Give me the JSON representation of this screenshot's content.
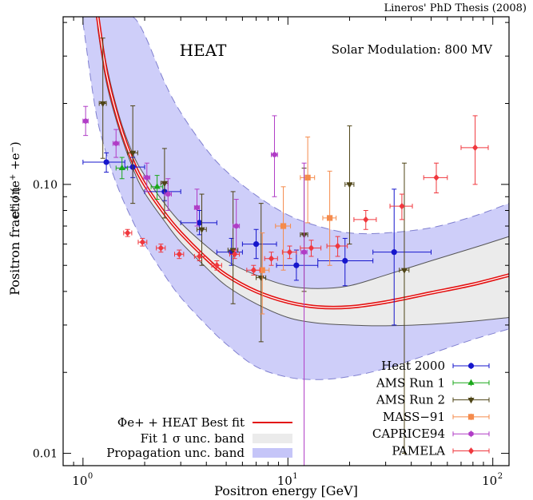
{
  "header": {
    "credit": "Lineros' PhD Thesis (2008)"
  },
  "chart_data": {
    "type": "scatter",
    "panel_title": "HEAT",
    "annotation": "Solar Modulation: 800 MV",
    "xlabel": "Positron energy [GeV]",
    "ylabel": "Positron fraction",
    "ylabel_formula": "e+ / (e+ + e−)",
    "xscale": "log",
    "yscale": "log",
    "xlim": [
      0.8,
      120
    ],
    "ylim": [
      0.009,
      0.42
    ],
    "x_ticks": [
      {
        "value": 1,
        "label": "10",
        "exp": "0"
      },
      {
        "value": 10,
        "label": "10",
        "exp": "1"
      },
      {
        "value": 100,
        "label": "10",
        "exp": "2"
      }
    ],
    "y_ticks": [
      {
        "value": 0.01,
        "label": "0.01"
      },
      {
        "value": 0.1,
        "label": "0.10"
      }
    ],
    "legend_position": "bottom-right",
    "model_legend_position": "bottom-center",
    "series": [
      {
        "name": "Heat 2000",
        "color": "#1616cc",
        "marker": "circle",
        "points": [
          {
            "x": 1.3,
            "y": 0.121,
            "xlo": 1.0,
            "xhi": 1.6,
            "ylo": 0.111,
            "yhi": 0.131
          },
          {
            "x": 1.75,
            "y": 0.116,
            "xlo": 1.6,
            "xhi": 2.0,
            "ylo": 0.106,
            "yhi": 0.126
          },
          {
            "x": 2.5,
            "y": 0.094,
            "xlo": 2.0,
            "xhi": 3.0,
            "ylo": 0.087,
            "yhi": 0.102
          },
          {
            "x": 3.7,
            "y": 0.072,
            "xlo": 3.0,
            "xhi": 4.5,
            "ylo": 0.065,
            "yhi": 0.08
          },
          {
            "x": 5.3,
            "y": 0.056,
            "xlo": 4.5,
            "xhi": 6.0,
            "ylo": 0.05,
            "yhi": 0.063
          },
          {
            "x": 7.0,
            "y": 0.06,
            "xlo": 6.0,
            "xhi": 8.8,
            "ylo": 0.053,
            "yhi": 0.068
          },
          {
            "x": 11.0,
            "y": 0.05,
            "xlo": 8.8,
            "xhi": 14.0,
            "ylo": 0.044,
            "yhi": 0.057
          },
          {
            "x": 19.0,
            "y": 0.052,
            "xlo": 14.0,
            "xhi": 26.0,
            "ylo": 0.042,
            "yhi": 0.063
          },
          {
            "x": 33.0,
            "y": 0.056,
            "xlo": 26.0,
            "xhi": 50.0,
            "ylo": 0.03,
            "yhi": 0.096
          }
        ]
      },
      {
        "name": "AMS Run 1",
        "color": "#1aa81a",
        "marker": "triangle-up",
        "points": [
          {
            "x": 1.55,
            "y": 0.115,
            "xlo": 1.45,
            "xhi": 1.65,
            "ylo": 0.105,
            "yhi": 0.126
          },
          {
            "x": 2.3,
            "y": 0.098,
            "xlo": 2.15,
            "xhi": 2.45,
            "ylo": 0.088,
            "yhi": 0.108
          }
        ]
      },
      {
        "name": "AMS Run 2",
        "color": "#4e4416",
        "marker": "triangle-down",
        "points": [
          {
            "x": 1.25,
            "y": 0.2,
            "xlo": 1.2,
            "xhi": 1.3,
            "ylo": 0.125,
            "yhi": 0.35
          },
          {
            "x": 1.75,
            "y": 0.131,
            "xlo": 1.65,
            "xhi": 1.85,
            "ylo": 0.085,
            "yhi": 0.196
          },
          {
            "x": 2.5,
            "y": 0.101,
            "xlo": 2.4,
            "xhi": 2.6,
            "ylo": 0.075,
            "yhi": 0.136
          },
          {
            "x": 3.8,
            "y": 0.068,
            "xlo": 3.6,
            "xhi": 4.0,
            "ylo": 0.05,
            "yhi": 0.092
          },
          {
            "x": 5.4,
            "y": 0.057,
            "xlo": 5.1,
            "xhi": 5.7,
            "ylo": 0.036,
            "yhi": 0.094
          },
          {
            "x": 7.4,
            "y": 0.045,
            "xlo": 7.0,
            "xhi": 7.8,
            "ylo": 0.026,
            "yhi": 0.085
          },
          {
            "x": 12.0,
            "y": 0.065,
            "xlo": 11.5,
            "xhi": 12.5,
            "ylo": 0.04,
            "yhi": 0.115
          },
          {
            "x": 20.0,
            "y": 0.1,
            "xlo": 19.0,
            "xhi": 21.0,
            "ylo": 0.06,
            "yhi": 0.165
          },
          {
            "x": 37.0,
            "y": 0.048,
            "xlo": 35.0,
            "xhi": 39.0,
            "ylo": 0.01,
            "yhi": 0.12
          }
        ]
      },
      {
        "name": "MASS−91",
        "color": "#f58b4c",
        "marker": "square",
        "points": [
          {
            "x": 7.5,
            "y": 0.048,
            "xlo": 6.9,
            "xhi": 8.1,
            "ylo": 0.033,
            "yhi": 0.066
          },
          {
            "x": 9.5,
            "y": 0.07,
            "xlo": 8.7,
            "xhi": 10.3,
            "ylo": 0.048,
            "yhi": 0.098
          },
          {
            "x": 12.5,
            "y": 0.106,
            "xlo": 11.5,
            "xhi": 13.5,
            "ylo": 0.072,
            "yhi": 0.15
          },
          {
            "x": 16.0,
            "y": 0.075,
            "xlo": 14.8,
            "xhi": 17.2,
            "ylo": 0.05,
            "yhi": 0.112
          }
        ]
      },
      {
        "name": "CAPRICE94",
        "color": "#b03cc6",
        "marker": "hexagon",
        "points": [
          {
            "x": 1.03,
            "y": 0.172,
            "xlo": 1.0,
            "xhi": 1.06,
            "ylo": 0.152,
            "yhi": 0.195
          },
          {
            "x": 1.45,
            "y": 0.142,
            "xlo": 1.4,
            "xhi": 1.5,
            "ylo": 0.126,
            "yhi": 0.16
          },
          {
            "x": 2.05,
            "y": 0.106,
            "xlo": 1.98,
            "xhi": 2.12,
            "ylo": 0.094,
            "yhi": 0.12
          },
          {
            "x": 2.6,
            "y": 0.092,
            "xlo": 2.5,
            "xhi": 2.7,
            "ylo": 0.08,
            "yhi": 0.105
          },
          {
            "x": 3.6,
            "y": 0.082,
            "xlo": 3.5,
            "xhi": 3.7,
            "ylo": 0.07,
            "yhi": 0.096
          },
          {
            "x": 5.6,
            "y": 0.07,
            "xlo": 5.4,
            "xhi": 5.8,
            "ylo": 0.055,
            "yhi": 0.088
          },
          {
            "x": 8.6,
            "y": 0.129,
            "xlo": 8.3,
            "xhi": 8.9,
            "ylo": 0.09,
            "yhi": 0.18
          },
          {
            "x": 12.0,
            "y": 0.056,
            "xlo": 11.6,
            "xhi": 12.4,
            "ylo": 0.009,
            "yhi": 0.12
          }
        ]
      },
      {
        "name": "PAMELA",
        "color": "#f0383e",
        "marker": "diamond",
        "points": [
          {
            "x": 1.65,
            "y": 0.066,
            "xlo": 1.58,
            "xhi": 1.73,
            "ylo": 0.064,
            "yhi": 0.068
          },
          {
            "x": 1.95,
            "y": 0.061,
            "xlo": 1.86,
            "xhi": 2.05,
            "ylo": 0.059,
            "yhi": 0.063
          },
          {
            "x": 2.4,
            "y": 0.058,
            "xlo": 2.28,
            "xhi": 2.52,
            "ylo": 0.056,
            "yhi": 0.06
          },
          {
            "x": 2.95,
            "y": 0.055,
            "xlo": 2.8,
            "xhi": 3.1,
            "ylo": 0.053,
            "yhi": 0.057
          },
          {
            "x": 3.7,
            "y": 0.054,
            "xlo": 3.5,
            "xhi": 3.9,
            "ylo": 0.052,
            "yhi": 0.056
          },
          {
            "x": 4.5,
            "y": 0.05,
            "xlo": 4.25,
            "xhi": 4.75,
            "ylo": 0.048,
            "yhi": 0.052
          },
          {
            "x": 5.5,
            "y": 0.055,
            "xlo": 5.2,
            "xhi": 5.8,
            "ylo": 0.053,
            "yhi": 0.057
          },
          {
            "x": 6.8,
            "y": 0.048,
            "xlo": 6.3,
            "xhi": 7.3,
            "ylo": 0.046,
            "yhi": 0.05
          },
          {
            "x": 8.3,
            "y": 0.053,
            "xlo": 7.7,
            "xhi": 8.9,
            "ylo": 0.05,
            "yhi": 0.056
          },
          {
            "x": 10.2,
            "y": 0.056,
            "xlo": 9.4,
            "xhi": 11.0,
            "ylo": 0.053,
            "yhi": 0.059
          },
          {
            "x": 13.0,
            "y": 0.058,
            "xlo": 11.5,
            "xhi": 14.5,
            "ylo": 0.054,
            "yhi": 0.062
          },
          {
            "x": 17.5,
            "y": 0.059,
            "xlo": 15.5,
            "xhi": 19.5,
            "ylo": 0.054,
            "yhi": 0.064
          },
          {
            "x": 24.0,
            "y": 0.074,
            "xlo": 21.0,
            "xhi": 27.0,
            "ylo": 0.068,
            "yhi": 0.08
          },
          {
            "x": 36.0,
            "y": 0.083,
            "xlo": 31.5,
            "xhi": 40.5,
            "ylo": 0.074,
            "yhi": 0.092
          },
          {
            "x": 53.0,
            "y": 0.106,
            "xlo": 46.0,
            "xhi": 60.0,
            "ylo": 0.093,
            "yhi": 0.12
          },
          {
            "x": 82.0,
            "y": 0.137,
            "xlo": 70.0,
            "xhi": 95.0,
            "ylo": 0.1,
            "yhi": 0.18
          }
        ]
      }
    ],
    "model": {
      "best_fit": {
        "name": "Φe+ + HEAT Best fit",
        "color": "#e31212",
        "x": [
          1.18,
          1.3,
          1.5,
          1.75,
          2.0,
          2.5,
          3.0,
          4.0,
          5.0,
          7.0,
          10.0,
          14.0,
          20.0,
          30.0,
          50.0,
          80.0,
          120.0
        ],
        "y": [
          0.42,
          0.26,
          0.17,
          0.122,
          0.1,
          0.078,
          0.066,
          0.053,
          0.046,
          0.04,
          0.0365,
          0.035,
          0.035,
          0.0365,
          0.0395,
          0.0425,
          0.046
        ]
      },
      "fit_band": {
        "name": "Fit 1 σ unc. band",
        "color": "#ebebeb",
        "x": [
          1.18,
          1.3,
          1.5,
          1.75,
          2.0,
          2.5,
          3.0,
          4.0,
          5.0,
          7.0,
          10.0,
          14.0,
          20.0,
          30.0,
          50.0,
          80.0,
          120.0
        ],
        "lower": [
          0.38,
          0.24,
          0.16,
          0.115,
          0.093,
          0.073,
          0.061,
          0.049,
          0.042,
          0.036,
          0.032,
          0.0305,
          0.03,
          0.0298,
          0.0302,
          0.031,
          0.032
        ],
        "upper": [
          0.44,
          0.28,
          0.18,
          0.13,
          0.108,
          0.085,
          0.072,
          0.059,
          0.052,
          0.046,
          0.042,
          0.041,
          0.042,
          0.046,
          0.052,
          0.058,
          0.064
        ]
      },
      "propagation_band": {
        "name": "Propagation unc. band",
        "color": "#c5c5f8",
        "x": [
          1.0,
          1.15,
          1.3,
          1.5,
          1.75,
          2.0,
          2.5,
          3.0,
          4.0,
          5.0,
          7.0,
          10.0,
          14.0,
          20.0,
          30.0,
          50.0,
          80.0,
          120.0
        ],
        "lower": [
          0.4,
          0.19,
          0.13,
          0.095,
          0.073,
          0.06,
          0.046,
          0.038,
          0.03,
          0.0255,
          0.021,
          0.0192,
          0.0188,
          0.0193,
          0.0207,
          0.0235,
          0.0265,
          0.029
        ],
        "upper": [
          0.42,
          0.42,
          0.42,
          0.42,
          0.42,
          0.36,
          0.24,
          0.185,
          0.135,
          0.112,
          0.091,
          0.077,
          0.07,
          0.066,
          0.066,
          0.069,
          0.076,
          0.085
        ]
      }
    }
  }
}
